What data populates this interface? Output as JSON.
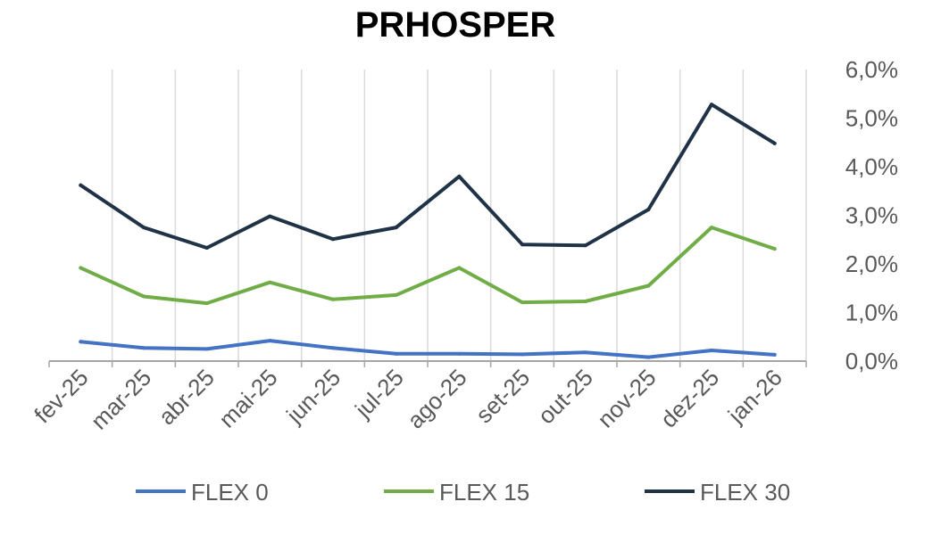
{
  "chart_data": {
    "type": "line",
    "title": "PRHOSPER",
    "xlabel": "",
    "ylabel": "",
    "categories": [
      "fev-25",
      "mar-25",
      "abr-25",
      "mai-25",
      "jun-25",
      "jul-25",
      "ago-25",
      "set-25",
      "out-25",
      "nov-25",
      "dez-25",
      "jan-26"
    ],
    "ylim": [
      0,
      6
    ],
    "yticks": [
      "0,0%",
      "1,0%",
      "2,0%",
      "3,0%",
      "4,0%",
      "5,0%",
      "6,0%"
    ],
    "y_axis_position": "right",
    "grid": "vertical",
    "legend_position": "bottom",
    "series": [
      {
        "name": "FLEX 0",
        "color": "#4472C4",
        "values": [
          0.4,
          0.27,
          0.25,
          0.42,
          0.27,
          0.15,
          0.15,
          0.14,
          0.18,
          0.08,
          0.22,
          0.13
        ]
      },
      {
        "name": "FLEX 15",
        "color": "#70AD47",
        "values": [
          1.92,
          1.33,
          1.19,
          1.62,
          1.27,
          1.36,
          1.92,
          1.21,
          1.23,
          1.55,
          2.75,
          2.31
        ]
      },
      {
        "name": "FLEX 30",
        "color": "#1F3246",
        "values": [
          3.62,
          2.75,
          2.33,
          2.98,
          2.51,
          2.75,
          3.8,
          2.4,
          2.38,
          3.12,
          5.28,
          4.48
        ]
      }
    ]
  }
}
